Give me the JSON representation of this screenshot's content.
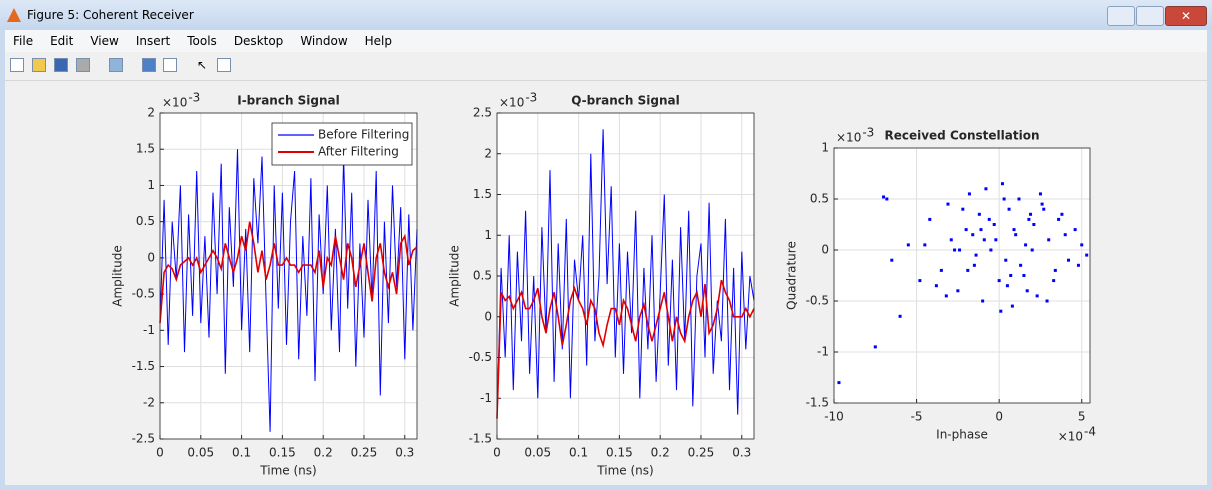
{
  "window": {
    "title": "Figure 5: Coherent Receiver",
    "menu": [
      "File",
      "Edit",
      "View",
      "Insert",
      "Tools",
      "Desktop",
      "Window",
      "Help"
    ]
  },
  "chart_data": [
    {
      "type": "line",
      "title": "I-branch Signal",
      "xlabel": "Time (ns)",
      "ylabel": "Amplitude",
      "y_exponent": {
        "base": "×10",
        "exponent": "-3"
      },
      "x": [
        0,
        0.005,
        0.01,
        0.015,
        0.02,
        0.025,
        0.03,
        0.035,
        0.04,
        0.045,
        0.05,
        0.055,
        0.06,
        0.065,
        0.07,
        0.075,
        0.08,
        0.085,
        0.09,
        0.095,
        0.1,
        0.105,
        0.11,
        0.115,
        0.12,
        0.125,
        0.13,
        0.135,
        0.14,
        0.145,
        0.15,
        0.155,
        0.16,
        0.165,
        0.17,
        0.175,
        0.18,
        0.185,
        0.19,
        0.195,
        0.2,
        0.205,
        0.21,
        0.215,
        0.22,
        0.225,
        0.23,
        0.235,
        0.24,
        0.245,
        0.25,
        0.255,
        0.26,
        0.265,
        0.27,
        0.275,
        0.28,
        0.285,
        0.29,
        0.295,
        0.3,
        0.305,
        0.31,
        0.315
      ],
      "series": [
        {
          "name": "Before Filtering",
          "color": "#0000ff",
          "values": [
            -0.9,
            0.8,
            -1.2,
            0.5,
            -0.3,
            1.0,
            -1.3,
            0.6,
            -0.8,
            1.2,
            -0.9,
            0.3,
            -1.1,
            0.9,
            -0.5,
            1.3,
            -1.6,
            0.7,
            -0.4,
            1.5,
            -1.0,
            0.4,
            -1.3,
            1.1,
            0.2,
            1.4,
            -0.6,
            -2.4,
            1.0,
            -0.7,
            0.9,
            -1.2,
            0.5,
            1.2,
            -1.4,
            0.3,
            -0.8,
            1.1,
            -1.7,
            0.6,
            -0.5,
            1.0,
            -1.0,
            0.4,
            -1.3,
            1.4,
            -0.7,
            0.9,
            -1.5,
            0.2,
            -1.1,
            0.8,
            -0.6,
            1.2,
            -1.9,
            0.5,
            -0.9,
            1.0,
            -0.4,
            0.7,
            -1.4,
            0.6,
            -1.0,
            0.4
          ]
        },
        {
          "name": "After Filtering",
          "color": "#e00000",
          "values": [
            -0.9,
            -0.2,
            -0.1,
            -0.15,
            -0.3,
            -0.1,
            -0.05,
            0.0,
            -0.1,
            0.0,
            -0.2,
            -0.1,
            0.0,
            0.1,
            0.0,
            -0.15,
            0.2,
            0.0,
            -0.2,
            0.0,
            0.3,
            0.1,
            0.5,
            0.2,
            -0.2,
            0.1,
            -0.3,
            -0.1,
            0.2,
            -0.1,
            -0.1,
            0.0,
            -0.1,
            -0.1,
            -0.2,
            -0.1,
            -0.1,
            -0.1,
            -0.2,
            0.1,
            -0.4,
            0.0,
            -0.1,
            0.3,
            0.0,
            -0.3,
            0.2,
            0.0,
            -0.4,
            -0.1,
            0.2,
            -0.2,
            -0.6,
            0.0,
            0.2,
            -0.2,
            -0.4,
            -0.2,
            -0.5,
            0.2,
            0.3,
            -0.1,
            0.1,
            0.15
          ]
        }
      ],
      "xlim": [
        0,
        0.315
      ],
      "ylim": [
        -2.5,
        2
      ],
      "xticks": [
        0,
        0.05,
        0.1,
        0.15,
        0.2,
        0.25,
        0.3
      ],
      "yticks": [
        -2.5,
        -2,
        -1.5,
        -1,
        -0.5,
        0,
        0.5,
        1,
        1.5,
        2
      ],
      "grid": true,
      "legend": "northeast"
    },
    {
      "type": "line",
      "title": "Q-branch Signal",
      "xlabel": "Time (ns)",
      "ylabel": "Amplitude",
      "y_exponent": {
        "base": "×10",
        "exponent": "-3"
      },
      "x": [
        0,
        0.005,
        0.01,
        0.015,
        0.02,
        0.025,
        0.03,
        0.035,
        0.04,
        0.045,
        0.05,
        0.055,
        0.06,
        0.065,
        0.07,
        0.075,
        0.08,
        0.085,
        0.09,
        0.095,
        0.1,
        0.105,
        0.11,
        0.115,
        0.12,
        0.125,
        0.13,
        0.135,
        0.14,
        0.145,
        0.15,
        0.155,
        0.16,
        0.165,
        0.17,
        0.175,
        0.18,
        0.185,
        0.19,
        0.195,
        0.2,
        0.205,
        0.21,
        0.215,
        0.22,
        0.225,
        0.23,
        0.235,
        0.24,
        0.245,
        0.25,
        0.255,
        0.26,
        0.265,
        0.27,
        0.275,
        0.28,
        0.285,
        0.29,
        0.295,
        0.3,
        0.305,
        0.31,
        0.315
      ],
      "series": [
        {
          "name": "Before Filtering",
          "color": "#0000ff",
          "values": [
            -1.2,
            0.6,
            -0.5,
            1.0,
            -0.9,
            0.8,
            -0.3,
            1.3,
            -0.7,
            0.5,
            -1.0,
            1.1,
            -0.2,
            1.8,
            -0.8,
            0.9,
            -0.4,
            1.2,
            -1.0,
            0.7,
            0.2,
            1.0,
            -0.6,
            2.0,
            -0.3,
            0.5,
            2.3,
            0.4,
            1.6,
            -0.5,
            0.9,
            -0.7,
            0.8,
            -0.2,
            1.3,
            -1.0,
            0.6,
            -0.4,
            1.0,
            -0.8,
            0.3,
            1.5,
            -0.6,
            0.7,
            -0.9,
            1.1,
            -0.3,
            1.3,
            -1.1,
            0.5,
            0.9,
            -0.5,
            1.4,
            -0.7,
            0.2,
            -0.3,
            1.2,
            -0.9,
            0.6,
            -1.2,
            0.8,
            -0.4,
            0.5,
            0.2
          ]
        },
        {
          "name": "After Filtering",
          "color": "#e00000",
          "values": [
            -1.25,
            0.3,
            0.2,
            0.25,
            0.1,
            0.2,
            0.3,
            0.1,
            0.1,
            0.2,
            0.35,
            0.0,
            -0.2,
            0.1,
            0.3,
            0.0,
            -0.35,
            -0.1,
            0.2,
            0.35,
            0.2,
            0.1,
            -0.1,
            0.2,
            0.1,
            -0.2,
            -0.35,
            -0.1,
            0.1,
            0.1,
            -0.1,
            0.2,
            0.1,
            -0.1,
            -0.3,
            0.0,
            0.15,
            -0.1,
            -0.3,
            -0.1,
            0.1,
            0.3,
            0.0,
            -0.3,
            0.0,
            -0.2,
            -0.3,
            0.0,
            0.2,
            0.3,
            0.0,
            0.4,
            -0.2,
            -0.1,
            0.1,
            0.45,
            0.3,
            0.2,
            0.0,
            0.0,
            0.0,
            0.1,
            0.0,
            0.1
          ]
        }
      ],
      "xlim": [
        0,
        0.315
      ],
      "ylim": [
        -1.5,
        2.5
      ],
      "xticks": [
        0,
        0.05,
        0.1,
        0.15,
        0.2,
        0.25,
        0.3
      ],
      "yticks": [
        -1.5,
        -1,
        -0.5,
        0,
        0.5,
        1,
        1.5,
        2,
        2.5
      ],
      "grid": true
    },
    {
      "type": "scatter",
      "title": "Received Constellation",
      "xlabel": "In-phase",
      "ylabel": "Quadrature",
      "y_exponent": {
        "base": "×10",
        "exponent": "-3"
      },
      "x_exponent": {
        "base": "×10",
        "exponent": "-4"
      },
      "color": "#0000ff",
      "x": [
        -9.7,
        -7.5,
        -6.0,
        -7.0,
        -6.8,
        -5.5,
        -6.5,
        -4.2,
        -3.5,
        -4.8,
        -2.9,
        -3.1,
        -2.5,
        -2.0,
        -1.8,
        -1.5,
        -1.2,
        -1.0,
        -0.8,
        -0.5,
        -0.3,
        0.0,
        0.2,
        0.4,
        0.6,
        0.8,
        1.0,
        1.2,
        1.5,
        1.8,
        2.0,
        2.3,
        2.6,
        3.0,
        3.4,
        3.8,
        4.2,
        4.6,
        5.0,
        5.3,
        -3.8,
        -2.2,
        -1.4,
        -0.6,
        0.1,
        0.9,
        1.7,
        2.5,
        3.3,
        4.0,
        -2.7,
        -1.9,
        -0.9,
        0.3,
        1.3,
        2.1,
        2.9,
        -4.5,
        -3.2,
        -1.6,
        0.5,
        1.9,
        3.6,
        4.8,
        -0.2,
        0.7,
        -1.1,
        1.6,
        -2.4,
        2.7
      ],
      "y": [
        -1.3,
        -0.95,
        -0.65,
        0.52,
        0.5,
        0.05,
        -0.1,
        0.3,
        -0.2,
        -0.3,
        0.1,
        0.45,
        -0.4,
        0.2,
        0.55,
        -0.15,
        0.35,
        -0.5,
        0.6,
        0.0,
        0.25,
        -0.3,
        0.65,
        -0.1,
        0.4,
        -0.55,
        0.15,
        0.5,
        -0.25,
        0.3,
        0.0,
        -0.45,
        0.45,
        0.1,
        -0.2,
        0.35,
        -0.1,
        0.2,
        0.05,
        -0.05,
        -0.35,
        0.4,
        -0.05,
        0.3,
        -0.6,
        0.2,
        -0.4,
        0.55,
        -0.3,
        0.15,
        0.0,
        -0.2,
        0.1,
        0.5,
        -0.15,
        0.25,
        -0.5,
        0.05,
        -0.45,
        0.15,
        -0.35,
        0.35,
        0.3,
        -0.15,
        0.1,
        -0.25,
        0.2,
        0.05,
        0.0,
        0.4
      ],
      "xlim": [
        -10,
        5.5
      ],
      "ylim": [
        -1.5,
        1
      ],
      "xticks": [
        -10,
        -5,
        0,
        5
      ],
      "yticks": [
        -1.5,
        -1,
        -0.5,
        0,
        0.5,
        1
      ],
      "grid": true
    }
  ]
}
